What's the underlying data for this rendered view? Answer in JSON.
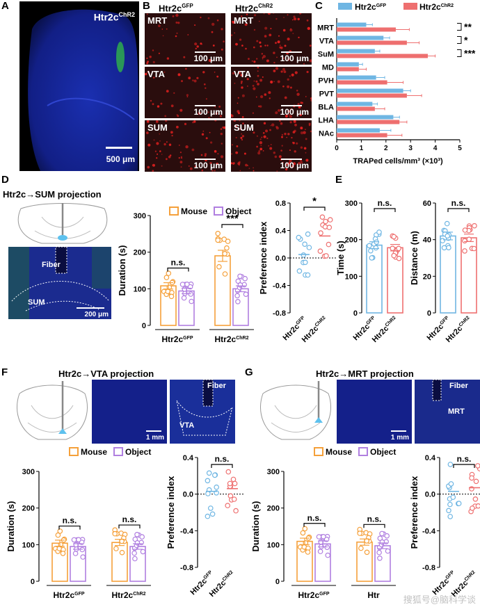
{
  "panels": {
    "A": {
      "letter": "A",
      "label": "Htr2c",
      "label_sup": "ChR2",
      "scalebar": "500 μm"
    },
    "B": {
      "letter": "B",
      "col_gfp": "Htr2c",
      "col_gfp_sup": "GFP",
      "col_chr2": "Htr2c",
      "col_chr2_sup": "ChR2",
      "rows": [
        "MRT",
        "VTA",
        "SUM"
      ],
      "scalebar": "100 μm"
    },
    "C": {
      "letter": "C"
    },
    "D": {
      "letter": "D",
      "title": "Htr2c→SUM projection",
      "fiber": "Fiber",
      "sum": "SUM",
      "scalebar": "200 μm"
    },
    "E": {
      "letter": "E"
    },
    "F": {
      "letter": "F",
      "title": "Htr2c→VTA projection",
      "fiber": "Fiber",
      "region": "VTA",
      "scalebar": "1 mm"
    },
    "G": {
      "letter": "G",
      "title": "Htr2c→MRT projection",
      "fiber": "Fiber",
      "region": "MRT",
      "scalebar": "1 mm"
    }
  },
  "colors": {
    "gfp": "#6fb6e3",
    "chr2": "#ee6f6f",
    "mouse": "#f5a03a",
    "object": "#b07fe0",
    "micro_bg": "#2a0d0d",
    "micro_dots": "#e0201f",
    "dapi": "#1f2a9a",
    "fiber_green": "#2bb34a"
  },
  "watermark": "搜狐号@脑科学谈",
  "chart_data": [
    {
      "id": "C",
      "type": "bar",
      "orientation": "horizontal",
      "categories": [
        "MRT",
        "VTA",
        "SuM",
        "MD",
        "PVH",
        "PVT",
        "BLA",
        "LHA",
        "NAc"
      ],
      "series": [
        {
          "name": "Htr2c",
          "name_sup": "GFP",
          "values": [
            1.2,
            1.9,
            1.55,
            0.9,
            1.6,
            2.7,
            1.45,
            2.3,
            1.75
          ],
          "errors": [
            0.25,
            0.25,
            0.2,
            0.15,
            0.35,
            0.3,
            0.2,
            0.25,
            0.45
          ]
        },
        {
          "name": "Htr2c",
          "name_sup": "ChR2",
          "values": [
            2.4,
            2.85,
            3.7,
            0.9,
            2.05,
            2.85,
            1.55,
            2.55,
            2.05
          ],
          "errors": [
            0.55,
            0.5,
            0.3,
            0.3,
            0.65,
            0.6,
            0.4,
            0.3,
            0.6
          ]
        }
      ],
      "xlabel": "TRAPed cells/mm³ (×10³)",
      "xlim": [
        0,
        5
      ],
      "xticks": [
        "0",
        "1",
        "2",
        "3",
        "4",
        "5"
      ],
      "sig": [
        {
          "row": 0,
          "text": "**"
        },
        {
          "row": 1,
          "text": "*"
        },
        {
          "row": 2,
          "text": "***"
        }
      ]
    },
    {
      "id": "D1",
      "type": "bar",
      "groups": [
        "Htr2c",
        "Htr2c"
      ],
      "group_sups": [
        "GFP",
        "ChR2"
      ],
      "series": [
        {
          "name": "Mouse",
          "values": [
            108,
            190
          ]
        },
        {
          "name": "Object",
          "values": [
            94,
            100
          ]
        }
      ],
      "ylabel": "Duration (s)",
      "ylim": [
        0,
        300
      ],
      "yticks": [
        "0",
        "100",
        "200",
        "300"
      ],
      "sig": [
        "n.s.",
        "***"
      ]
    },
    {
      "id": "D2",
      "type": "scatter",
      "categories": [
        "Htr2c",
        "Htr2c"
      ],
      "category_sups": [
        "GFP",
        "ChR2"
      ],
      "means": [
        0.05,
        0.32
      ],
      "ylabel": "Preference index",
      "ylim": [
        -0.8,
        0.8
      ],
      "yticks": [
        "-0.8",
        "-0.4",
        "0.0",
        "0.4",
        "0.8"
      ],
      "sig": "*"
    },
    {
      "id": "E1",
      "type": "bar",
      "categories": [
        "Htr2c",
        "Htr2c"
      ],
      "category_sups": [
        "GFP",
        "ChR2"
      ],
      "values": [
        185,
        178
      ],
      "ylabel": "Time (s)",
      "ylim": [
        0,
        300
      ],
      "yticks": [
        "0",
        "100",
        "200",
        "300"
      ],
      "sig": "n.s."
    },
    {
      "id": "E2",
      "type": "bar",
      "categories": [
        "Htr2c",
        "Htr2c"
      ],
      "category_sups": [
        "GFP",
        "ChR2"
      ],
      "values": [
        42,
        41
      ],
      "ylabel": "Distance (m)",
      "ylim": [
        0,
        60
      ],
      "yticks": [
        "0",
        "20",
        "40",
        "60"
      ],
      "sig": "n.s."
    },
    {
      "id": "F1",
      "type": "bar",
      "groups": [
        "Htr2c",
        "Htr2c"
      ],
      "group_sups": [
        "GFP",
        "ChR2"
      ],
      "series": [
        {
          "name": "Mouse",
          "values": [
            104,
            106
          ]
        },
        {
          "name": "Object",
          "values": [
            95,
            95
          ]
        }
      ],
      "ylabel": "Duration (s)",
      "ylim": [
        0,
        300
      ],
      "yticks": [
        "0",
        "100",
        "200",
        "300"
      ],
      "sig": [
        "n.s.",
        "n.s."
      ]
    },
    {
      "id": "F2",
      "type": "scatter",
      "categories": [
        "Htr2c",
        "Htr2c"
      ],
      "category_sups": [
        "GFP",
        "ChR2"
      ],
      "means": [
        0.03,
        0.06
      ],
      "ylabel": "Preference index",
      "ylim": [
        -0.8,
        0.4
      ],
      "yticks": [
        "-0.8",
        "-0.4",
        "0.0",
        "0.4"
      ],
      "sig": "n.s."
    },
    {
      "id": "G1",
      "type": "bar",
      "groups": [
        "Htr2c",
        "Htr"
      ],
      "group_sups": [
        "GFP",
        ""
      ],
      "series": [
        {
          "name": "Mouse",
          "values": [
            109,
            107
          ]
        },
        {
          "name": "Object",
          "values": [
            102,
            97
          ]
        }
      ],
      "ylabel": "Duration (s)",
      "ylim": [
        0,
        300
      ],
      "yticks": [
        "0",
        "100",
        "200",
        "300"
      ],
      "sig": [
        "n.s.",
        "n.s."
      ]
    },
    {
      "id": "G2",
      "type": "scatter",
      "categories": [
        "Htr2c",
        "Htr2c"
      ],
      "category_sups": [
        "GFP",
        "ChR2"
      ],
      "means": [
        0.03,
        0.07
      ],
      "ylabel": "Preference index",
      "ylim": [
        -0.8,
        0.4
      ],
      "yticks": [
        "-0.8",
        "-0.4",
        "0.0",
        "0.4"
      ],
      "sig": "n.s."
    }
  ]
}
